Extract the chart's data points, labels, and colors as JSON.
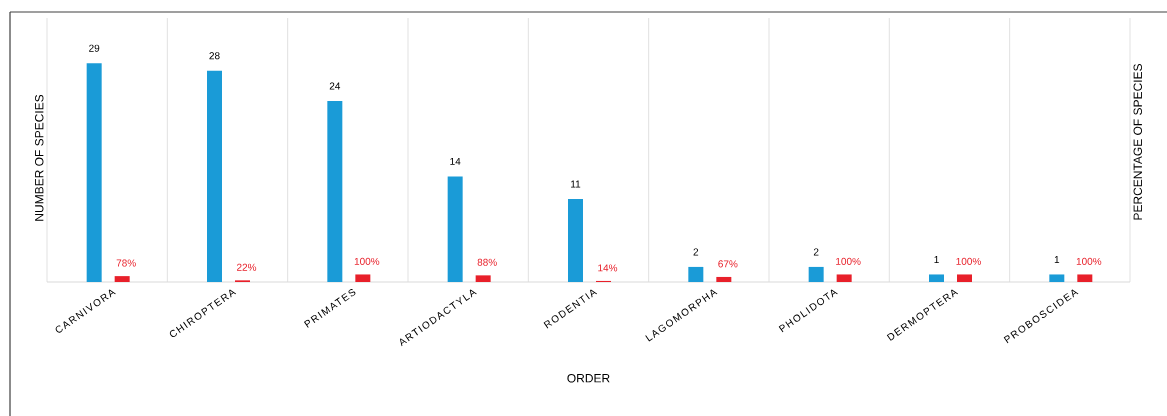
{
  "chart_data": {
    "type": "bar",
    "xlabel": "ORDER",
    "ylabel": "NUMBER OF SPECIES",
    "y2label": "PERCENTAGE OF SPECIES",
    "categories": [
      "CARNIVORA",
      "CHIROPTERA",
      "PRIMATES",
      "ARTIODACTYLA",
      "RODENTIA",
      "LAGOMORPHA",
      "PHOLIDOTA",
      "DERMOPTERA",
      "PROBOSCIDEA"
    ],
    "series": [
      {
        "color": "#1a9bd7",
        "values": [
          29,
          28,
          24,
          14,
          11,
          2,
          2,
          1,
          1
        ],
        "value_labels": [
          "29",
          "28",
          "24",
          "14",
          "11",
          "2",
          "2",
          "1",
          "1"
        ]
      },
      {
        "color": "#e8202a",
        "axis": "y2",
        "values": [
          78,
          22,
          100,
          88,
          14,
          67,
          100,
          100,
          100
        ],
        "value_labels": [
          "78%",
          "22%",
          "100%",
          "88%",
          "14%",
          "67%",
          "100%",
          "100%",
          "100%"
        ]
      }
    ],
    "ylim": [
      0,
      35
    ],
    "y2lim": [
      0,
      3500
    ],
    "grid": "x",
    "tick_labels": "x"
  }
}
